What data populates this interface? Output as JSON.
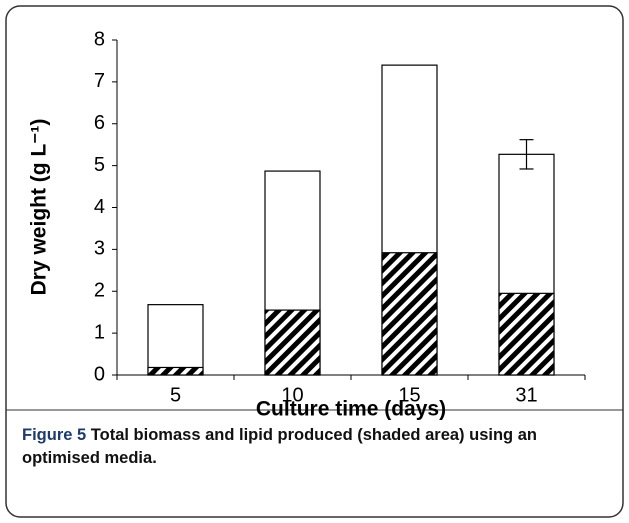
{
  "chart_data": {
    "type": "bar",
    "ylabel": "Dry weight (g L⁻¹)",
    "xlabel": "Culture time (days)",
    "categories": [
      "5",
      "10",
      "15",
      "31"
    ],
    "series": [
      {
        "values": [
          1.68,
          4.87,
          7.4,
          5.27
        ],
        "color": "#ffffff",
        "errors": [
          null,
          null,
          null,
          0.35
        ]
      },
      {
        "values": [
          0.18,
          1.55,
          2.92,
          1.95
        ],
        "color": "#000000",
        "hatch": true
      }
    ],
    "ylim": [
      0,
      8
    ],
    "yticks": [
      0,
      1,
      2,
      3,
      4,
      5,
      6,
      7,
      8
    ],
    "grid": false
  },
  "caption": {
    "label": "Figure 5",
    "text": "Total biomass and lipid produced (shaded area) using an optimised media."
  }
}
